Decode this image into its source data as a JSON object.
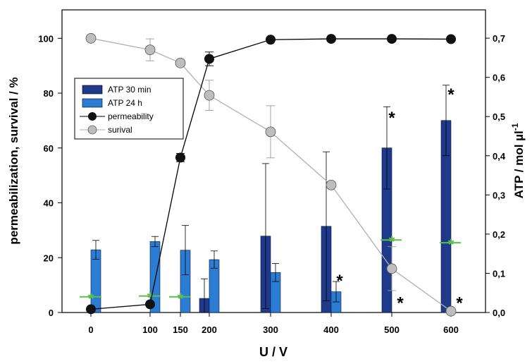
{
  "chart_data": {
    "type": "bar",
    "x_categories": [
      "0",
      "100",
      "150",
      "200",
      "300",
      "400",
      "500",
      "600"
    ],
    "xlabel": "U / V",
    "ylabel_left": "permeabilization, survival / %",
    "ylabel_right": "ATP / mol µl",
    "ylabel_right_exponent": "-1",
    "ylim_left": [
      0,
      110
    ],
    "ylim_right": [
      0,
      0.7
    ],
    "left_ticks": [
      "0",
      "20",
      "40",
      "60",
      "80",
      "100"
    ],
    "right_ticks": [
      "0,0",
      "0,1",
      "0,2",
      "0,3",
      "0,4",
      "0,5",
      "0,6",
      "0,7"
    ],
    "legend": {
      "placement": "upper-left",
      "items": [
        {
          "key": "atp30",
          "label": "ATP 30 min",
          "style": "bar",
          "color": "#1f3a8a"
        },
        {
          "key": "atp24",
          "label": "ATP 24 h",
          "style": "bar",
          "color": "#2b7cd3"
        },
        {
          "key": "perm",
          "label": "permeability",
          "style": "line-marker",
          "color": "#000000"
        },
        {
          "key": "surv",
          "label": "surival",
          "style": "line-marker",
          "color": "#b0b0b0"
        }
      ]
    },
    "bar_series": [
      {
        "key": "atp30",
        "name": "ATP 30 min",
        "color": "#1f3a8a",
        "axis": "right",
        "points": [
          {
            "x": 200,
            "value": 0.036,
            "err": 0.05
          },
          {
            "x": 300,
            "value": 0.195,
            "err": 0.185
          },
          {
            "x": 400,
            "value": 0.22,
            "err": 0.19
          },
          {
            "x": 500,
            "value": 0.42,
            "err": 0.105
          },
          {
            "x": 600,
            "value": 0.49,
            "err": 0.09
          }
        ]
      },
      {
        "key": "atp24",
        "name": "ATP 24 h",
        "color": "#2b7cd3",
        "axis": "right",
        "points": [
          {
            "x": 0,
            "value": 0.16,
            "err": 0.024
          },
          {
            "x": 100,
            "value": 0.181,
            "err": 0.013
          },
          {
            "x": 150,
            "value": 0.159,
            "err": 0.063
          },
          {
            "x": 200,
            "value": 0.135,
            "err": 0.022
          },
          {
            "x": 300,
            "value": 0.102,
            "err": 0.023
          },
          {
            "x": 400,
            "value": 0.053,
            "err": 0.026
          }
        ]
      }
    ],
    "line_series": [
      {
        "key": "perm",
        "name": "permeability",
        "color": "#000000",
        "axis": "left",
        "points": [
          {
            "x": 0,
            "y": 1.2,
            "err": 0
          },
          {
            "x": 100,
            "y": 3,
            "err": 0
          },
          {
            "x": 150,
            "y": 56.5,
            "err": 1.5
          },
          {
            "x": 200,
            "y": 92.5,
            "err": 2.5
          },
          {
            "x": 300,
            "y": 99.5,
            "err": 0
          },
          {
            "x": 400,
            "y": 99.8,
            "err": 0
          },
          {
            "x": 500,
            "y": 99.8,
            "err": 0
          },
          {
            "x": 600,
            "y": 99.7,
            "err": 0
          }
        ]
      },
      {
        "key": "surv",
        "name": "surival",
        "color": "#b0b0b0",
        "axis": "left",
        "points": [
          {
            "x": 0,
            "y": 100,
            "err": 0
          },
          {
            "x": 100,
            "y": 95.8,
            "err": 4
          },
          {
            "x": 150,
            "y": 91,
            "err": 0
          },
          {
            "x": 200,
            "y": 79.2,
            "err": 5.5
          },
          {
            "x": 300,
            "y": 65.9,
            "err": 9.5
          },
          {
            "x": 400,
            "y": 46.5,
            "err": 0
          },
          {
            "x": 500,
            "y": 16,
            "err": 8
          },
          {
            "x": 600,
            "y": 0.5,
            "err": 0
          }
        ]
      }
    ],
    "green_markers": {
      "color": "#5bbf4a",
      "points": [
        {
          "x": 0,
          "value": 0.04
        },
        {
          "x": 100,
          "value": 0.042
        },
        {
          "x": 150,
          "value": 0.04
        },
        {
          "x": 500,
          "value": 0.185
        },
        {
          "x": 600,
          "value": 0.178
        }
      ]
    },
    "significance_marks": {
      "symbol": "*",
      "points": [
        {
          "x": 400,
          "value": 0.085,
          "offset": "right"
        },
        {
          "x": 500,
          "value": 0.5,
          "offset": "center"
        },
        {
          "x": 500,
          "value": 0.028,
          "offset": "right"
        },
        {
          "x": 600,
          "value": 0.56,
          "offset": "center"
        },
        {
          "x": 600,
          "value": 0.028,
          "offset": "right"
        }
      ]
    }
  }
}
